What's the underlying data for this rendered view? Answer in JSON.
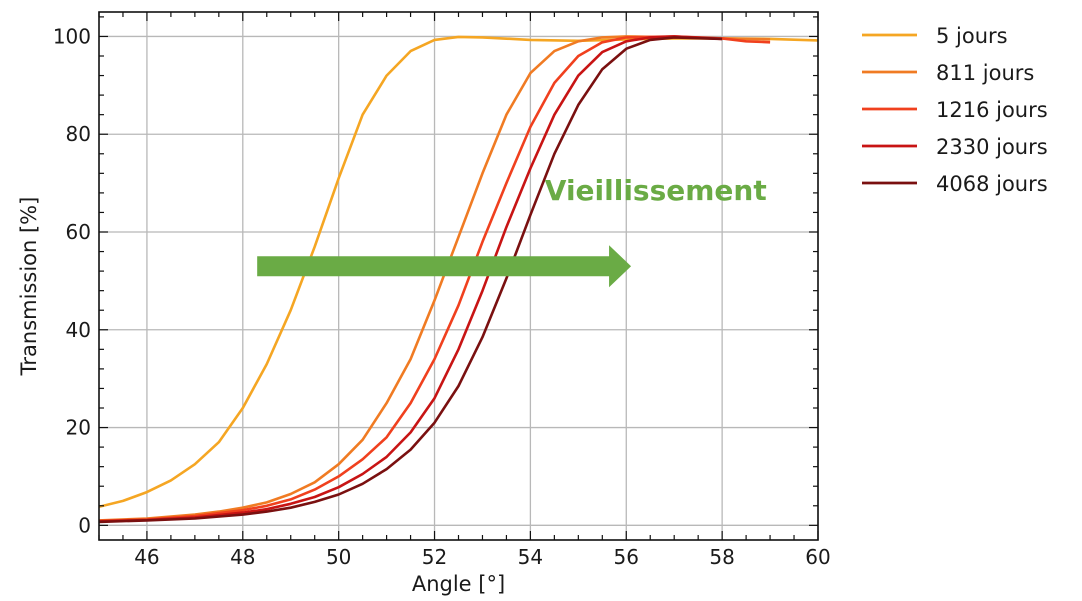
{
  "chart_data": {
    "type": "line",
    "title": "",
    "xlabel": "Angle [°]",
    "ylabel": "Transmission [%]",
    "xlim": [
      45,
      60
    ],
    "ylim": [
      -3,
      105
    ],
    "x_ticks": [
      46,
      48,
      50,
      52,
      54,
      56,
      58,
      60
    ],
    "y_ticks": [
      0,
      20,
      40,
      60,
      80,
      100
    ],
    "grid": true,
    "legend_position": "outside-right",
    "annotation": {
      "text": "Vieillissement",
      "color": "#6aab45",
      "arrow_from_x": 48.3,
      "arrow_to_x": 56.1,
      "arrow_y": 53
    },
    "series": [
      {
        "name": "5 jours",
        "color": "#f5a623",
        "points": [
          [
            45,
            3.8
          ],
          [
            45.5,
            5
          ],
          [
            46,
            6.8
          ],
          [
            46.5,
            9.2
          ],
          [
            47,
            12.5
          ],
          [
            47.5,
            17
          ],
          [
            48,
            24
          ],
          [
            48.5,
            33
          ],
          [
            49,
            44
          ],
          [
            49.5,
            57
          ],
          [
            50,
            71
          ],
          [
            50.5,
            84
          ],
          [
            51,
            92
          ],
          [
            51.5,
            97
          ],
          [
            52,
            99.3
          ],
          [
            52.5,
            99.9
          ],
          [
            53,
            99.8
          ],
          [
            54,
            99.3
          ],
          [
            55,
            99.1
          ],
          [
            56,
            99.4
          ],
          [
            57,
            99.6
          ],
          [
            58,
            99.6
          ],
          [
            59,
            99.5
          ],
          [
            60,
            99.2
          ]
        ]
      },
      {
        "name": "811 jours",
        "color": "#f07b23",
        "points": [
          [
            45,
            1
          ],
          [
            46,
            1.4
          ],
          [
            47,
            2.2
          ],
          [
            47.5,
            2.8
          ],
          [
            48,
            3.6
          ],
          [
            48.5,
            4.7
          ],
          [
            49,
            6.4
          ],
          [
            49.5,
            8.8
          ],
          [
            50,
            12.5
          ],
          [
            50.5,
            17.5
          ],
          [
            51,
            25
          ],
          [
            51.5,
            34
          ],
          [
            52,
            46
          ],
          [
            52.5,
            59
          ],
          [
            53,
            72
          ],
          [
            53.5,
            84
          ],
          [
            54,
            92.5
          ],
          [
            54.5,
            97
          ],
          [
            55,
            99
          ],
          [
            55.5,
            99.8
          ],
          [
            56,
            100
          ],
          [
            57,
            99.8
          ],
          [
            58,
            99.6
          ],
          [
            59,
            99.4
          ]
        ]
      },
      {
        "name": "1216 jours",
        "color": "#f0401e",
        "points": [
          [
            45,
            0.9
          ],
          [
            46,
            1.2
          ],
          [
            47,
            1.9
          ],
          [
            48,
            3.1
          ],
          [
            48.5,
            4
          ],
          [
            49,
            5.3
          ],
          [
            49.5,
            7.3
          ],
          [
            50,
            10
          ],
          [
            50.5,
            13.5
          ],
          [
            51,
            18
          ],
          [
            51.5,
            25
          ],
          [
            52,
            34
          ],
          [
            52.5,
            45
          ],
          [
            53,
            58
          ],
          [
            53.5,
            70
          ],
          [
            54,
            81.5
          ],
          [
            54.5,
            90.5
          ],
          [
            55,
            96
          ],
          [
            55.5,
            98.8
          ],
          [
            56,
            99.8
          ],
          [
            57,
            100
          ],
          [
            58,
            99.6
          ],
          [
            58.5,
            99
          ],
          [
            59,
            98.8
          ]
        ]
      },
      {
        "name": "2330 jours",
        "color": "#c81414",
        "points": [
          [
            45,
            0.8
          ],
          [
            46,
            1.1
          ],
          [
            47,
            1.6
          ],
          [
            48,
            2.6
          ],
          [
            48.5,
            3.3
          ],
          [
            49,
            4.4
          ],
          [
            49.5,
            5.8
          ],
          [
            50,
            7.8
          ],
          [
            50.5,
            10.5
          ],
          [
            51,
            14
          ],
          [
            51.5,
            19
          ],
          [
            52,
            26
          ],
          [
            52.5,
            36
          ],
          [
            53,
            48
          ],
          [
            53.5,
            61
          ],
          [
            54,
            73
          ],
          [
            54.5,
            84
          ],
          [
            55,
            92
          ],
          [
            55.5,
            96.8
          ],
          [
            56,
            99
          ],
          [
            56.5,
            99.8
          ],
          [
            57,
            100
          ],
          [
            58,
            99.5
          ]
        ]
      },
      {
        "name": "4068 jours",
        "color": "#7a1010",
        "points": [
          [
            45,
            0.7
          ],
          [
            46,
            1
          ],
          [
            47,
            1.4
          ],
          [
            48,
            2.2
          ],
          [
            48.5,
            2.8
          ],
          [
            49,
            3.6
          ],
          [
            49.5,
            4.8
          ],
          [
            50,
            6.3
          ],
          [
            50.5,
            8.5
          ],
          [
            51,
            11.5
          ],
          [
            51.5,
            15.5
          ],
          [
            52,
            21
          ],
          [
            52.5,
            28.5
          ],
          [
            53,
            38.5
          ],
          [
            53.5,
            50.5
          ],
          [
            54,
            63.5
          ],
          [
            54.5,
            76
          ],
          [
            55,
            86
          ],
          [
            55.5,
            93.3
          ],
          [
            56,
            97.5
          ],
          [
            56.5,
            99.3
          ],
          [
            57,
            99.8
          ],
          [
            58,
            99.5
          ]
        ]
      }
    ]
  }
}
